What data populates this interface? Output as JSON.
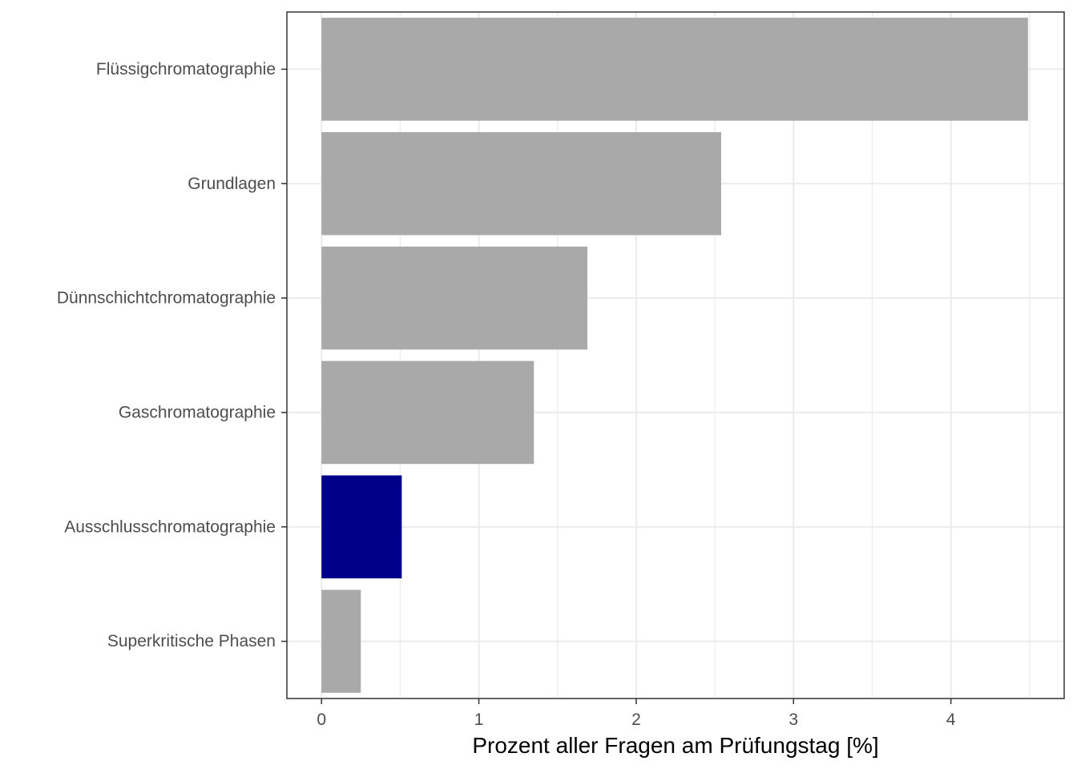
{
  "chart_data": {
    "type": "bar",
    "orientation": "horizontal",
    "categories": [
      "Flüssigchromatographie",
      "Grundlagen",
      "Dünnschichtchromatographie",
      "Gaschromatographie",
      "Ausschlusschromatographie",
      "Superkritische Phasen"
    ],
    "values": [
      4.49,
      2.54,
      1.69,
      1.35,
      0.51,
      0.25
    ],
    "highlight_index": 4,
    "colors": {
      "default": "#a9a9a9",
      "highlight": "#00008b"
    },
    "xlabel": "Prozent aller Fragen am Prüfungstag [%]",
    "ylabel": "",
    "xlim": [
      -0.22,
      4.72
    ],
    "xticks": [
      "0",
      "1",
      "2",
      "3",
      "4"
    ],
    "grid": true
  }
}
